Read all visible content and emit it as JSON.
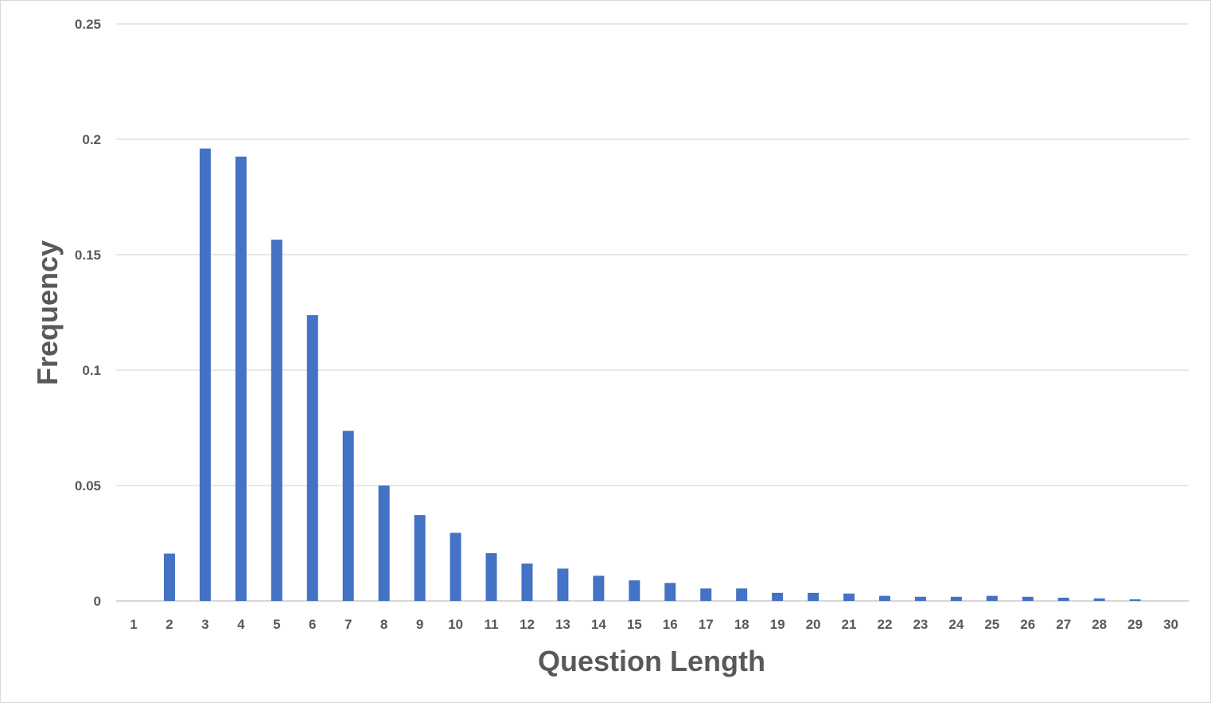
{
  "chart_data": {
    "type": "bar",
    "title": "",
    "xlabel": "Question Length",
    "ylabel": "Frequency",
    "categories": [
      "1",
      "2",
      "3",
      "4",
      "5",
      "6",
      "7",
      "8",
      "9",
      "10",
      "11",
      "12",
      "13",
      "14",
      "15",
      "16",
      "17",
      "18",
      "19",
      "20",
      "21",
      "22",
      "23",
      "24",
      "25",
      "26",
      "27",
      "28",
      "29",
      "30"
    ],
    "values": [
      0,
      0.0205,
      0.196,
      0.1925,
      0.1565,
      0.1238,
      0.0737,
      0.05,
      0.0372,
      0.0295,
      0.0207,
      0.0162,
      0.014,
      0.0109,
      0.0089,
      0.0078,
      0.0054,
      0.0054,
      0.0035,
      0.0035,
      0.0032,
      0.0022,
      0.0018,
      0.0018,
      0.0022,
      0.0018,
      0.0014,
      0.0011,
      0.0007,
      0
    ],
    "ylim": [
      0,
      0.25
    ],
    "yticks": [
      "0",
      "0.05",
      "0.1",
      "0.15",
      "0.2",
      "0.25"
    ],
    "bar_color": "#4472c4",
    "grid": true,
    "legend": "none"
  }
}
